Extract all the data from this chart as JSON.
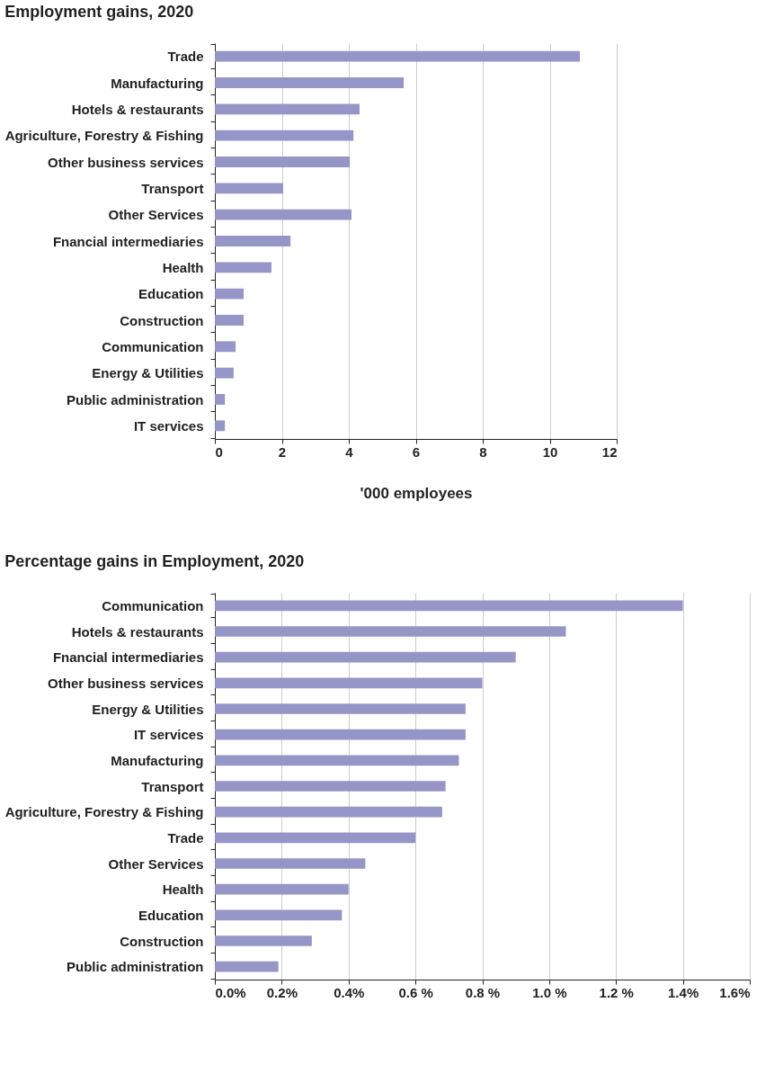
{
  "chart_data": [
    {
      "type": "bar",
      "orientation": "horizontal",
      "title": "Employment gains, 2020",
      "xlabel": "'000 employees",
      "categories": [
        "Trade",
        "Manufacturing",
        "Hotels & restaurants",
        "Agriculture, Forestry & Fishing",
        "Other business services",
        "Transport",
        "Other Services",
        "Fnancial intermediaries",
        "Health",
        "Education",
        "Construction",
        "Communication",
        "Energy & Utilities",
        "Public administration",
        "IT services"
      ],
      "values": [
        10.9,
        5.64,
        4.32,
        4.14,
        4.03,
        2.04,
        4.08,
        2.26,
        1.69,
        0.86,
        0.86,
        0.62,
        0.56,
        0.3,
        0.3
      ],
      "color": "#9595c8",
      "xlim": [
        0,
        12
      ],
      "xticks": [
        0,
        2,
        4,
        6,
        8,
        10,
        12
      ],
      "grid": "x"
    },
    {
      "type": "bar",
      "orientation": "horizontal",
      "title": "Percentage gains in Employment, 2020",
      "categories": [
        "Communication",
        "Hotels & restaurants",
        "Fnancial intermediaries",
        "Other business services",
        "Energy & Utilities",
        "IT services",
        "Manufacturing",
        "Transport",
        "Agriculture, Forestry & Fishing",
        "Trade",
        "Other Services",
        "Health",
        "Education",
        "Construction",
        "Public administration"
      ],
      "values": [
        1.4,
        1.05,
        0.9,
        0.8,
        0.75,
        0.75,
        0.73,
        0.69,
        0.68,
        0.6,
        0.45,
        0.4,
        0.38,
        0.29,
        0.19
      ],
      "color": "#9595c8",
      "xlim": [
        0,
        1.6
      ],
      "xticks": [
        {
          "value": 0,
          "label": "0.0%"
        },
        {
          "value": 0.2,
          "label": "0.2%"
        },
        {
          "value": 0.4,
          "label": "0.4%"
        },
        {
          "value": 0.6,
          "label": "0.6 %"
        },
        {
          "value": 0.8,
          "label": "0.8 %"
        },
        {
          "value": 1.0,
          "label": "1.0 %"
        },
        {
          "value": 1.2,
          "label": "1.2 %"
        },
        {
          "value": 1.4,
          "label": "1.4%"
        },
        {
          "value": 1.6,
          "label": "1.6%"
        }
      ],
      "grid": "x"
    }
  ]
}
